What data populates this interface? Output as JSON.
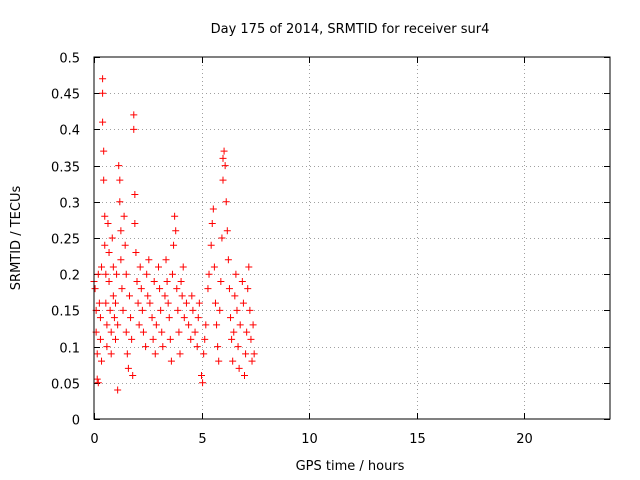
{
  "chart_data": {
    "type": "scatter",
    "title": "Day 175 of 2014, SRMTID for receiver sur4",
    "xlabel": "GPS time / hours",
    "ylabel": "SRMTID / TECUs",
    "xlim": [
      0,
      24
    ],
    "ylim": [
      0,
      0.5
    ],
    "xticks": [
      0,
      5,
      10,
      15,
      20
    ],
    "yticks": [
      0,
      0.05,
      0.1,
      0.15,
      0.2,
      0.25,
      0.3,
      0.35,
      0.4,
      0.45,
      0.5
    ],
    "xtick_labels": [
      "0",
      "5",
      "10",
      "15",
      "20"
    ],
    "ytick_labels": [
      "0",
      "0.05",
      "0.1",
      "0.15",
      "0.2",
      "0.25",
      "0.3",
      "0.35",
      "0.4",
      "0.45",
      "0.5"
    ],
    "grid": true,
    "marker": "+",
    "color": "#ff0000",
    "series": [
      {
        "name": "SRMTID",
        "points": [
          [
            0.0,
            0.19
          ],
          [
            0.05,
            0.18
          ],
          [
            0.1,
            0.15
          ],
          [
            0.1,
            0.12
          ],
          [
            0.15,
            0.09
          ],
          [
            0.15,
            0.055
          ],
          [
            0.2,
            0.05
          ],
          [
            0.2,
            0.2
          ],
          [
            0.25,
            0.16
          ],
          [
            0.3,
            0.14
          ],
          [
            0.3,
            0.11
          ],
          [
            0.35,
            0.21
          ],
          [
            0.35,
            0.08
          ],
          [
            0.4,
            0.47
          ],
          [
            0.4,
            0.45
          ],
          [
            0.4,
            0.41
          ],
          [
            0.45,
            0.37
          ],
          [
            0.45,
            0.33
          ],
          [
            0.5,
            0.28
          ],
          [
            0.5,
            0.24
          ],
          [
            0.55,
            0.2
          ],
          [
            0.55,
            0.16
          ],
          [
            0.6,
            0.13
          ],
          [
            0.6,
            0.1
          ],
          [
            0.65,
            0.27
          ],
          [
            0.7,
            0.23
          ],
          [
            0.7,
            0.19
          ],
          [
            0.75,
            0.15
          ],
          [
            0.8,
            0.12
          ],
          [
            0.8,
            0.09
          ],
          [
            0.85,
            0.25
          ],
          [
            0.9,
            0.21
          ],
          [
            0.9,
            0.17
          ],
          [
            0.95,
            0.14
          ],
          [
            1.0,
            0.11
          ],
          [
            1.0,
            0.16
          ],
          [
            1.05,
            0.2
          ],
          [
            1.1,
            0.13
          ],
          [
            1.1,
            0.04
          ],
          [
            1.15,
            0.35
          ],
          [
            1.2,
            0.33
          ],
          [
            1.2,
            0.3
          ],
          [
            1.25,
            0.26
          ],
          [
            1.25,
            0.22
          ],
          [
            1.3,
            0.18
          ],
          [
            1.35,
            0.15
          ],
          [
            1.4,
            0.28
          ],
          [
            1.45,
            0.24
          ],
          [
            1.5,
            0.2
          ],
          [
            1.5,
            0.12
          ],
          [
            1.55,
            0.09
          ],
          [
            1.6,
            0.07
          ],
          [
            1.65,
            0.17
          ],
          [
            1.7,
            0.14
          ],
          [
            1.75,
            0.11
          ],
          [
            1.8,
            0.06
          ],
          [
            1.85,
            0.42
          ],
          [
            1.85,
            0.4
          ],
          [
            1.9,
            0.31
          ],
          [
            1.9,
            0.27
          ],
          [
            1.95,
            0.23
          ],
          [
            2.0,
            0.19
          ],
          [
            2.05,
            0.16
          ],
          [
            2.1,
            0.13
          ],
          [
            2.15,
            0.21
          ],
          [
            2.2,
            0.18
          ],
          [
            2.25,
            0.15
          ],
          [
            2.3,
            0.12
          ],
          [
            2.4,
            0.1
          ],
          [
            2.45,
            0.2
          ],
          [
            2.5,
            0.17
          ],
          [
            2.55,
            0.22
          ],
          [
            2.6,
            0.16
          ],
          [
            2.7,
            0.14
          ],
          [
            2.75,
            0.11
          ],
          [
            2.8,
            0.19
          ],
          [
            2.85,
            0.09
          ],
          [
            2.9,
            0.13
          ],
          [
            3.0,
            0.21
          ],
          [
            3.05,
            0.18
          ],
          [
            3.1,
            0.15
          ],
          [
            3.15,
            0.12
          ],
          [
            3.2,
            0.1
          ],
          [
            3.3,
            0.17
          ],
          [
            3.35,
            0.22
          ],
          [
            3.4,
            0.19
          ],
          [
            3.45,
            0.16
          ],
          [
            3.5,
            0.14
          ],
          [
            3.55,
            0.11
          ],
          [
            3.6,
            0.08
          ],
          [
            3.65,
            0.2
          ],
          [
            3.7,
            0.24
          ],
          [
            3.75,
            0.28
          ],
          [
            3.8,
            0.26
          ],
          [
            3.85,
            0.18
          ],
          [
            3.9,
            0.15
          ],
          [
            3.95,
            0.12
          ],
          [
            4.0,
            0.09
          ],
          [
            4.05,
            0.19
          ],
          [
            4.1,
            0.17
          ],
          [
            4.15,
            0.21
          ],
          [
            4.2,
            0.14
          ],
          [
            4.3,
            0.16
          ],
          [
            4.4,
            0.13
          ],
          [
            4.5,
            0.11
          ],
          [
            4.55,
            0.17
          ],
          [
            4.6,
            0.15
          ],
          [
            4.7,
            0.12
          ],
          [
            4.8,
            0.1
          ],
          [
            4.85,
            0.14
          ],
          [
            4.9,
            0.16
          ],
          [
            5.0,
            0.06
          ],
          [
            5.05,
            0.05
          ],
          [
            5.1,
            0.09
          ],
          [
            5.15,
            0.11
          ],
          [
            5.2,
            0.13
          ],
          [
            5.3,
            0.18
          ],
          [
            5.35,
            0.2
          ],
          [
            5.45,
            0.24
          ],
          [
            5.5,
            0.27
          ],
          [
            5.55,
            0.29
          ],
          [
            5.6,
            0.21
          ],
          [
            5.65,
            0.16
          ],
          [
            5.7,
            0.13
          ],
          [
            5.75,
            0.1
          ],
          [
            5.8,
            0.08
          ],
          [
            5.85,
            0.15
          ],
          [
            5.9,
            0.19
          ],
          [
            5.95,
            0.25
          ],
          [
            6.0,
            0.33
          ],
          [
            6.0,
            0.36
          ],
          [
            6.05,
            0.37
          ],
          [
            6.1,
            0.35
          ],
          [
            6.15,
            0.3
          ],
          [
            6.2,
            0.26
          ],
          [
            6.25,
            0.22
          ],
          [
            6.3,
            0.18
          ],
          [
            6.35,
            0.14
          ],
          [
            6.4,
            0.11
          ],
          [
            6.45,
            0.08
          ],
          [
            6.5,
            0.12
          ],
          [
            6.55,
            0.17
          ],
          [
            6.6,
            0.2
          ],
          [
            6.65,
            0.15
          ],
          [
            6.7,
            0.1
          ],
          [
            6.75,
            0.07
          ],
          [
            6.8,
            0.13
          ],
          [
            6.9,
            0.19
          ],
          [
            6.95,
            0.16
          ],
          [
            7.0,
            0.06
          ],
          [
            7.05,
            0.09
          ],
          [
            7.1,
            0.12
          ],
          [
            7.15,
            0.18
          ],
          [
            7.2,
            0.21
          ],
          [
            7.25,
            0.15
          ],
          [
            7.3,
            0.11
          ],
          [
            7.35,
            0.08
          ],
          [
            7.4,
            0.13
          ],
          [
            7.45,
            0.09
          ]
        ]
      }
    ]
  }
}
